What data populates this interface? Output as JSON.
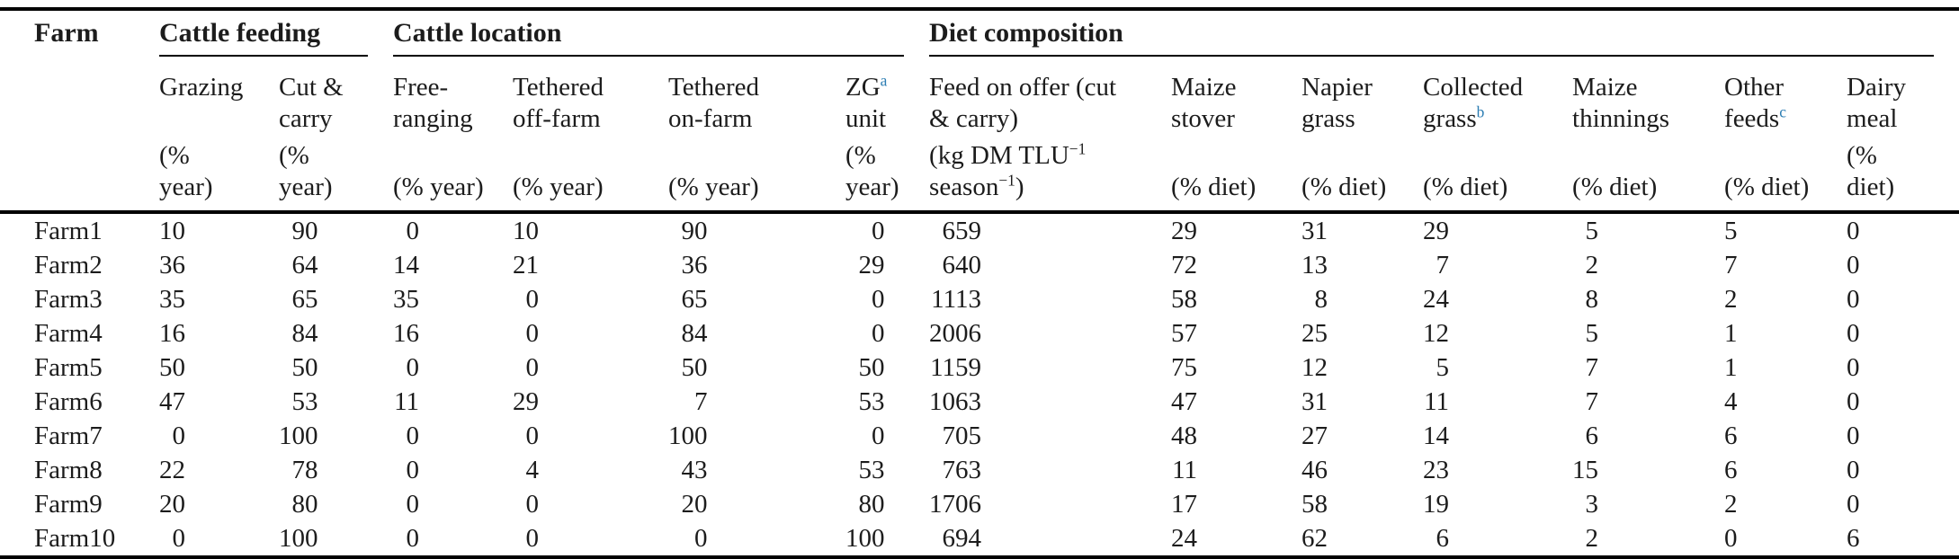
{
  "page": {
    "background": "#ffffff",
    "text_color": "#1c1c1c",
    "footnote_marker_color": "#2b7db3"
  },
  "table": {
    "corner_header": "Farm",
    "groups": [
      {
        "label": "Cattle feeding",
        "span": 2
      },
      {
        "label": "Cattle location",
        "span": 4
      },
      {
        "label": "Diet composition",
        "span": 7
      }
    ],
    "columns": [
      {
        "id": "grazing",
        "name_parts": [
          {
            "t": "Grazing"
          }
        ],
        "unit_parts": [
          {
            "t": "(%\nyear)"
          }
        ]
      },
      {
        "id": "cut-and-carry",
        "name_parts": [
          {
            "t": "Cut &\ncarry"
          }
        ],
        "unit_parts": [
          {
            "t": "(%\nyear)"
          }
        ]
      },
      {
        "id": "free-ranging",
        "name_parts": [
          {
            "t": "Free-\nranging"
          }
        ],
        "unit_parts": [
          {
            "t": "(% year)"
          }
        ]
      },
      {
        "id": "tethered-off-farm",
        "name_parts": [
          {
            "t": "Tethered\noff-farm"
          }
        ],
        "unit_parts": [
          {
            "t": "(% year)"
          }
        ]
      },
      {
        "id": "tethered-on-farm",
        "name_parts": [
          {
            "t": "Tethered\non-farm"
          }
        ],
        "unit_parts": [
          {
            "t": "(% year)"
          }
        ]
      },
      {
        "id": "zg-unit",
        "name_parts": [
          {
            "t": "ZG"
          },
          {
            "t": "a",
            "sup": true,
            "footnote": true
          },
          {
            "t": "\nunit"
          }
        ],
        "unit_parts": [
          {
            "t": "(%\nyear)"
          }
        ]
      },
      {
        "id": "feed-on-offer",
        "name_parts": [
          {
            "t": "Feed on offer (cut\n& carry)"
          }
        ],
        "unit_parts": [
          {
            "t": "(kg DM TLU"
          },
          {
            "t": "−1",
            "sup": true
          },
          {
            "t": "\nseason"
          },
          {
            "t": "−1",
            "sup": true
          },
          {
            "t": ")"
          }
        ]
      },
      {
        "id": "maize-stover",
        "name_parts": [
          {
            "t": "Maize\nstover"
          }
        ],
        "unit_parts": [
          {
            "t": "(% diet)"
          }
        ]
      },
      {
        "id": "napier-grass",
        "name_parts": [
          {
            "t": "Napier\ngrass"
          }
        ],
        "unit_parts": [
          {
            "t": "(% diet)"
          }
        ]
      },
      {
        "id": "collected-grass",
        "name_parts": [
          {
            "t": "Collected\ngrass"
          },
          {
            "t": "b",
            "sup": true,
            "footnote": true
          }
        ],
        "unit_parts": [
          {
            "t": "(% diet)"
          }
        ]
      },
      {
        "id": "maize-thinnings",
        "name_parts": [
          {
            "t": "Maize\nthinnings"
          }
        ],
        "unit_parts": [
          {
            "t": "(% diet)"
          }
        ]
      },
      {
        "id": "other-feeds",
        "name_parts": [
          {
            "t": "Other\nfeeds"
          },
          {
            "t": "c",
            "sup": true,
            "footnote": true
          }
        ],
        "unit_parts": [
          {
            "t": "(% diet)"
          }
        ]
      },
      {
        "id": "dairy-meal",
        "name_parts": [
          {
            "t": "Dairy\nmeal"
          }
        ],
        "unit_parts": [
          {
            "t": "(%\ndiet)"
          }
        ]
      }
    ],
    "rows": [
      [
        "Farm1",
        "10",
        "90",
        "0",
        "10",
        "90",
        "0",
        "659",
        "29",
        "31",
        "29",
        "5",
        "5",
        "0"
      ],
      [
        "Farm2",
        "36",
        "64",
        "14",
        "21",
        "36",
        "29",
        "640",
        "72",
        "13",
        "7",
        "2",
        "7",
        "0"
      ],
      [
        "Farm3",
        "35",
        "65",
        "35",
        "0",
        "65",
        "0",
        "1113",
        "58",
        "8",
        "24",
        "8",
        "2",
        "0"
      ],
      [
        "Farm4",
        "16",
        "84",
        "16",
        "0",
        "84",
        "0",
        "2006",
        "57",
        "25",
        "12",
        "5",
        "1",
        "0"
      ],
      [
        "Farm5",
        "50",
        "50",
        "0",
        "0",
        "50",
        "50",
        "1159",
        "75",
        "12",
        "5",
        "7",
        "1",
        "0"
      ],
      [
        "Farm6",
        "47",
        "53",
        "11",
        "29",
        "7",
        "53",
        "1063",
        "47",
        "31",
        "11",
        "7",
        "4",
        "0"
      ],
      [
        "Farm7",
        "0",
        "100",
        "0",
        "0",
        "100",
        "0",
        "705",
        "48",
        "27",
        "14",
        "6",
        "6",
        "0"
      ],
      [
        "Farm8",
        "22",
        "78",
        "0",
        "4",
        "43",
        "53",
        "763",
        "11",
        "46",
        "23",
        "15",
        "6",
        "0"
      ],
      [
        "Farm9",
        "20",
        "80",
        "0",
        "0",
        "20",
        "80",
        "1706",
        "17",
        "58",
        "19",
        "3",
        "2",
        "0"
      ],
      [
        "Farm10",
        "0",
        "100",
        "0",
        "0",
        "0",
        "100",
        "694",
        "24",
        "62",
        "6",
        "2",
        "0",
        "6"
      ]
    ]
  }
}
